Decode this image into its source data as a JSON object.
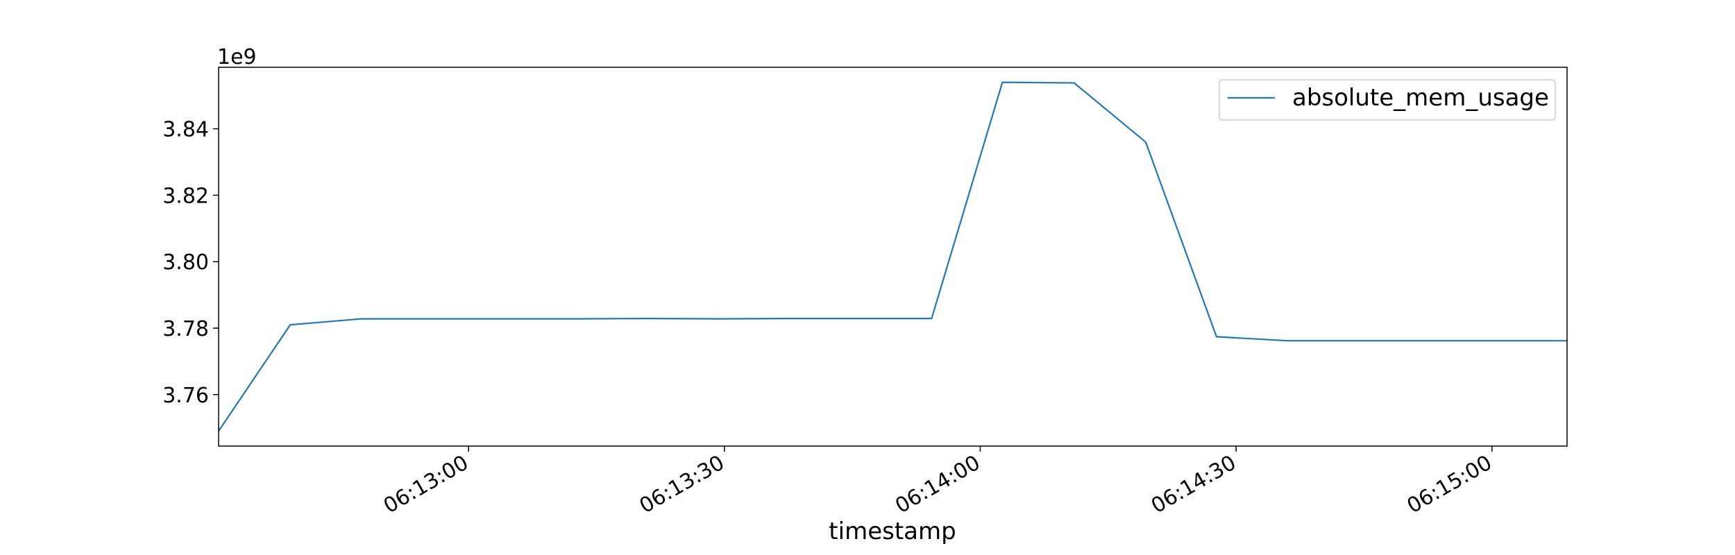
{
  "chart_data": {
    "type": "line",
    "xlabel": "timestamp",
    "ylabel": "",
    "y_offset_text": "1e9",
    "x_tick_labels": [
      "06:13:00",
      "06:13:30",
      "06:14:00",
      "06:14:30",
      "06:15:00"
    ],
    "x_ticks_seconds": [
      60,
      90,
      120,
      150,
      180
    ],
    "xlim_seconds": [
      30.7,
      188.8
    ],
    "y_tick_labels": [
      "3.76",
      "3.78",
      "3.80",
      "3.82",
      "3.84"
    ],
    "y_ticks": [
      3.76,
      3.78,
      3.8,
      3.82,
      3.84
    ],
    "ylim": [
      3.7445,
      3.8585
    ],
    "grid": false,
    "legend_position": "top-right",
    "series": [
      {
        "name": "absolute_mem_usage",
        "color": "#1f77b4",
        "x": [
          "06:12:30",
          "06:12:39",
          "06:12:47",
          "06:12:55",
          "06:13:04",
          "06:13:12",
          "06:13:21",
          "06:13:29",
          "06:13:38",
          "06:13:46",
          "06:13:55",
          "06:14:03",
          "06:14:12",
          "06:14:20",
          "06:14:29",
          "06:14:37",
          "06:14:46",
          "06:14:54",
          "06:15:03",
          "06:15:08"
        ],
        "x_seconds": [
          30.7,
          39.1,
          47.4,
          55.8,
          64.1,
          72.5,
          80.9,
          89.2,
          97.6,
          105.9,
          114.3,
          122.6,
          131.0,
          139.4,
          147.7,
          156.1,
          164.4,
          172.8,
          181.1,
          188.8
        ],
        "values": [
          3.749,
          3.781,
          3.7828,
          3.7828,
          3.7828,
          3.7828,
          3.7829,
          3.7828,
          3.7829,
          3.7829,
          3.7829,
          3.854,
          3.8538,
          3.836,
          3.7774,
          3.7762,
          3.7762,
          3.7762,
          3.7762,
          3.7762
        ]
      }
    ]
  }
}
